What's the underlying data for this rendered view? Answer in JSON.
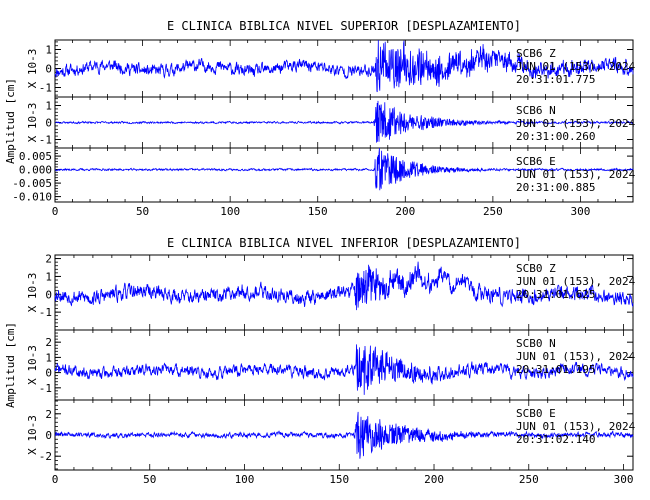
{
  "chart_data": [
    {
      "type": "line",
      "title": "E CLINICA BIBLICA NIVEL SUPERIOR [DESPLAZAMIENTO]",
      "ylabel": "Amplitud [cm]",
      "xlim": [
        0,
        330
      ],
      "xticks": [
        "0",
        "50",
        "100",
        "150",
        "200",
        "250",
        "300"
      ],
      "xtick_values": [
        0,
        50,
        100,
        150,
        200,
        250,
        300
      ],
      "color": "#0000ff",
      "channels": [
        {
          "name": "Z",
          "info": [
            "SCB6   Z",
            "JUN 01 (153), 2024",
            "20:31:01.775"
          ],
          "scale_label": "X 10-3",
          "ylim": [
            -1.5,
            1.5
          ],
          "yticks": [
            "1",
            "0",
            "-1"
          ],
          "ytick_values": [
            1,
            0,
            -1
          ],
          "baseline": 0.0,
          "noise": 0.35,
          "event_start": 182,
          "event_amp": 1.1,
          "event_decay": 60,
          "drift": 0.25,
          "extra": [
            [
              238,
              248,
              0.6
            ]
          ],
          "seed": 11
        },
        {
          "name": "N",
          "info": [
            "SCB6   N",
            "JUN 01 (153), 2024",
            "20:31:00.260"
          ],
          "scale_label": "X 10-3",
          "ylim": [
            -1.5,
            1.5
          ],
          "yticks": [
            "1",
            "0",
            "-1"
          ],
          "ytick_values": [
            1,
            0,
            -1
          ],
          "baseline": 0.0,
          "noise": 0.06,
          "event_start": 182,
          "event_amp": 1.3,
          "event_decay": 22,
          "drift": 0.0,
          "extra": [],
          "seed": 23
        },
        {
          "name": "E",
          "info": [
            "SCB6   E",
            "JUN 01 (153), 2024",
            "20:31:00.885"
          ],
          "scale_label": "",
          "ylim": [
            -0.012,
            0.008
          ],
          "yticks": [
            "0.005",
            "0.000",
            "-0.005",
            "-0.010"
          ],
          "ytick_values": [
            0.005,
            0.0,
            -0.005,
            -0.01
          ],
          "baseline": 0.0,
          "noise": 0.0004,
          "event_start": 182,
          "event_amp": 0.0085,
          "event_decay": 18,
          "drift": 0.0,
          "extra": [],
          "seed": 37
        }
      ]
    },
    {
      "type": "line",
      "title": "E CLINICA BIBLICA NIVEL INFERIOR [DESPLAZAMIENTO]",
      "ylabel": "Amplitud [cm]",
      "xlim": [
        0,
        305
      ],
      "xticks": [
        "0",
        "50",
        "100",
        "150",
        "200",
        "250",
        "300"
      ],
      "xtick_values": [
        0,
        50,
        100,
        150,
        200,
        250,
        300
      ],
      "color": "#0000ff",
      "channels": [
        {
          "name": "Z",
          "info": [
            "SCB0   Z",
            "JUN 01 (153), 2024",
            "20:31:01.625"
          ],
          "scale_label": "X 10-3",
          "ylim": [
            -2.0,
            2.2
          ],
          "yticks": [
            "2",
            "1",
            "0",
            "-1"
          ],
          "ytick_values": [
            2,
            1,
            0,
            -1
          ],
          "baseline": 0.0,
          "noise": 0.45,
          "event_start": 158,
          "event_amp": 1.1,
          "event_decay": 25,
          "drift": 0.3,
          "extra": [
            [
              180,
              200,
              1.3
            ]
          ],
          "seed": 53
        },
        {
          "name": "N",
          "info": [
            "SCB0   N",
            "JUN 01 (153), 2024",
            "20:31:01.195"
          ],
          "scale_label": "X 10-3",
          "ylim": [
            -1.8,
            2.8
          ],
          "yticks": [
            "2",
            "1",
            "0",
            "-1"
          ],
          "ytick_values": [
            2,
            1,
            0,
            -1
          ],
          "baseline": 0.1,
          "noise": 0.4,
          "event_start": 158,
          "event_amp": 1.8,
          "event_decay": 20,
          "drift": 0.25,
          "extra": [],
          "seed": 71
        },
        {
          "name": "E",
          "info": [
            "SCB0   E",
            "JUN 01 (153), 2024",
            "20:31:02.140"
          ],
          "scale_label": "X 10-3",
          "ylim": [
            -3.3,
            3.3
          ],
          "yticks": [
            "2",
            "0",
            "-2"
          ],
          "ytick_values": [
            2,
            0,
            -2
          ],
          "baseline": 0.0,
          "noise": 0.25,
          "event_start": 158,
          "event_amp": 2.3,
          "event_decay": 22,
          "drift": 0.1,
          "extra": [],
          "seed": 89
        }
      ]
    }
  ]
}
